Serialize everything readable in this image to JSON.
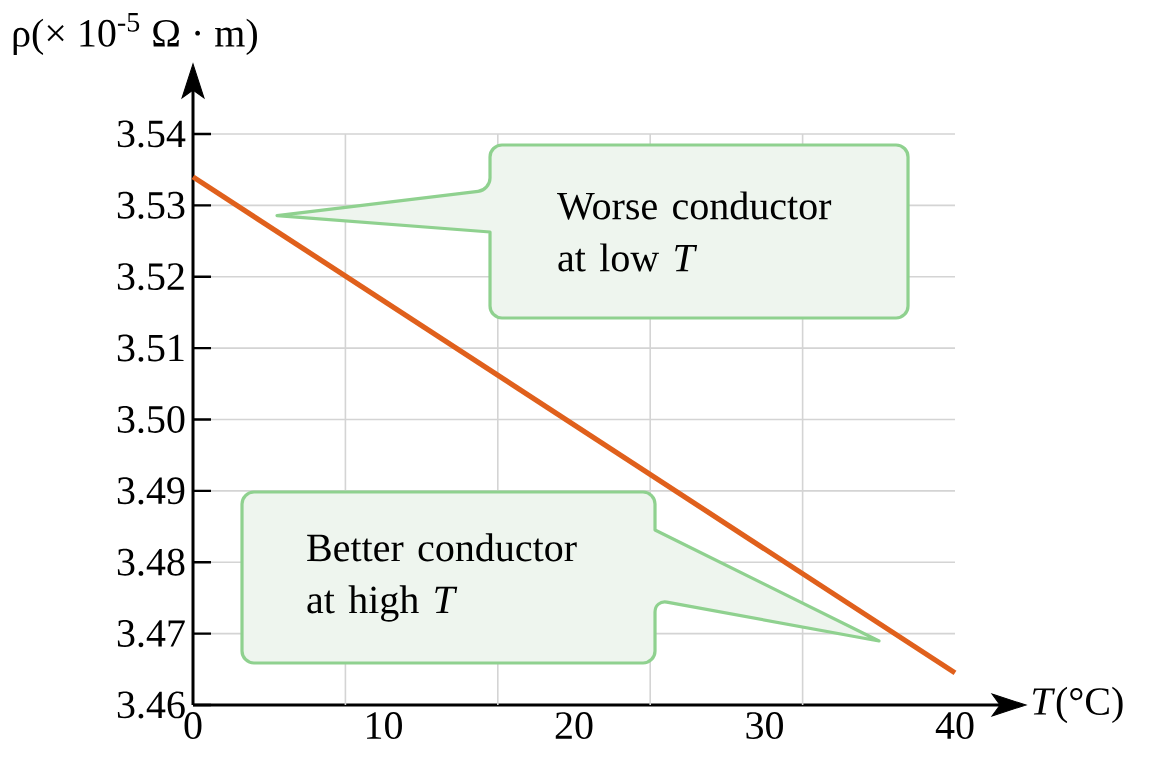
{
  "chart_data": {
    "type": "line",
    "xlabel": "*T*(°C)",
    "ylabel": "ρ(× 10$^{-5}$ Ω · m)",
    "x": [
      0,
      40
    ],
    "series": [
      {
        "color": "#e0601c",
        "values": [
          3.534,
          3.4645
        ]
      }
    ],
    "xlim": [
      0,
      40
    ],
    "ylim": [
      3.46,
      3.54
    ],
    "xticks": [
      0,
      {
        "value": 8,
        "label": null
      },
      10,
      {
        "value": 16,
        "label": null
      },
      20,
      {
        "value": 24,
        "label": null
      },
      30,
      {
        "value": 32,
        "label": null
      },
      40
    ],
    "yticks": [
      3.46,
      3.47,
      3.48,
      3.49,
      {
        "value": 3.5,
        "label": "3.50"
      },
      3.51,
      3.52,
      3.53,
      3.54
    ],
    "grid": true,
    "annotations": [
      "Worse conductor at low *T*",
      "Better conductor at high *T*"
    ]
  }
}
